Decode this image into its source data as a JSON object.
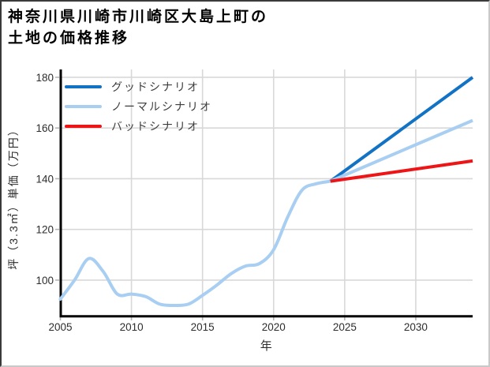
{
  "title": {
    "line1": "神奈川県川崎市川崎区大島上町の",
    "line2": "土地の価格推移"
  },
  "chart_data": {
    "type": "line",
    "title": "神奈川県川崎市川崎区大島上町の土地の価格推移",
    "xlabel": "年",
    "ylabel": "坪（3.3㎡）単価（万円）",
    "x_ticks": [
      2005,
      2010,
      2015,
      2020,
      2025,
      2030
    ],
    "y_ticks": [
      100,
      120,
      140,
      160,
      180
    ],
    "xlim": [
      2005,
      2034
    ],
    "ylim": [
      85.8,
      183.1
    ],
    "grid": true,
    "legend_position": "top-left",
    "history": {
      "color": "#a8cef2",
      "x": [
        2005,
        2006,
        2007,
        2008,
        2009,
        2010,
        2011,
        2012,
        2013,
        2014,
        2015,
        2016,
        2017,
        2018,
        2019,
        2020,
        2021,
        2022,
        2023,
        2024
      ],
      "values": [
        92.5,
        100,
        108.5,
        103.5,
        94.5,
        94.5,
        93.5,
        90.5,
        90,
        90.5,
        94,
        98,
        102.5,
        105.5,
        106.5,
        112,
        125,
        135.5,
        138,
        139
      ]
    },
    "scenarios": [
      {
        "label": "グッドシナリオ",
        "color": "#1273c4",
        "x": [
          2024,
          2034
        ],
        "values": [
          139,
          180
        ]
      },
      {
        "label": "ノーマルシナリオ",
        "color": "#a8cef2",
        "x": [
          2024,
          2034
        ],
        "values": [
          139,
          163
        ]
      },
      {
        "label": "バッドシナリオ",
        "color": "#ed1515",
        "x": [
          2024,
          2034
        ],
        "values": [
          139,
          147
        ]
      }
    ]
  },
  "colors": {
    "grid": "#d8d8d8",
    "spine": "#000000",
    "tick": "#b5b5b5",
    "tick_label": "#2d2d2d",
    "axis_label": "#2d2d2d",
    "legend_text": "#3d3d3d"
  }
}
